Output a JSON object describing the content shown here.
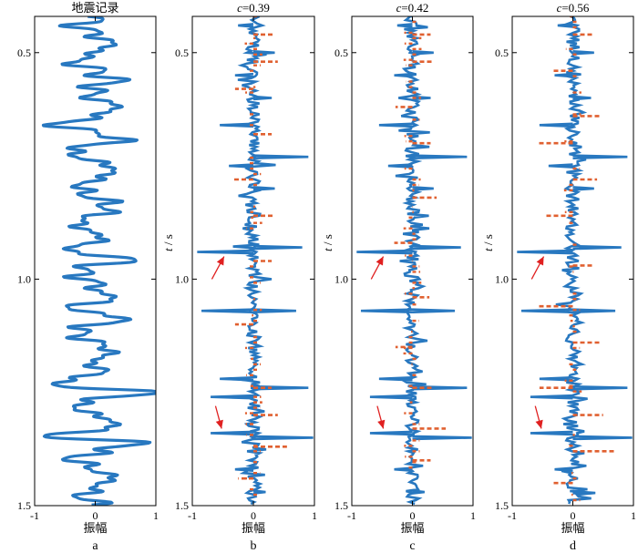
{
  "chart_data": [
    {
      "type": "line",
      "panel_letter": "a",
      "title": "地震记录",
      "xlabel": "振幅",
      "ylabel": "",
      "xlim": [
        -1,
        1
      ],
      "ylim": [
        0.42,
        1.5
      ],
      "y_inverted": true,
      "xticks": [
        -1,
        0,
        1
      ],
      "yticks": [
        0.5,
        1.0,
        1.5
      ],
      "series": [
        {
          "color": "#2878c0",
          "style": "wiggle-trace",
          "spikes": [
            {
              "t": 0.44,
              "a": -0.26
            },
            {
              "t": 0.48,
              "a": 0.28
            },
            {
              "t": 0.52,
              "a": -0.35
            },
            {
              "t": 0.56,
              "a": 0.3
            },
            {
              "t": 0.62,
              "a": 0.4
            },
            {
              "t": 0.66,
              "a": -0.62
            },
            {
              "t": 0.69,
              "a": 0.32
            },
            {
              "t": 0.72,
              "a": -0.45
            },
            {
              "t": 0.76,
              "a": 0.35
            },
            {
              "t": 0.8,
              "a": -0.3
            },
            {
              "t": 0.84,
              "a": 0.28
            },
            {
              "t": 0.88,
              "a": -0.35
            },
            {
              "t": 0.94,
              "a": -0.82
            },
            {
              "t": 0.95,
              "a": 0.8
            },
            {
              "t": 0.99,
              "a": -0.3
            },
            {
              "t": 1.04,
              "a": 0.25
            },
            {
              "t": 1.07,
              "a": -0.68
            },
            {
              "t": 1.08,
              "a": 0.72
            },
            {
              "t": 1.12,
              "a": -0.32
            },
            {
              "t": 1.16,
              "a": 0.3
            },
            {
              "t": 1.23,
              "a": -0.72
            },
            {
              "t": 1.25,
              "a": 0.78
            },
            {
              "t": 1.28,
              "a": -0.3
            },
            {
              "t": 1.32,
              "a": 0.35
            },
            {
              "t": 1.35,
              "a": -0.92
            },
            {
              "t": 1.36,
              "a": 0.98
            },
            {
              "t": 1.4,
              "a": -0.35
            },
            {
              "t": 1.44,
              "a": 0.3
            },
            {
              "t": 1.48,
              "a": -0.2
            }
          ]
        }
      ]
    },
    {
      "type": "line",
      "panel_letter": "b",
      "title_symbol": "c",
      "title_value": "=0.39",
      "xlabel": "振幅",
      "ylabel_symbol": "t",
      "ylabel_unit": " / s",
      "xlim": [
        -1,
        1
      ],
      "ylim": [
        0.42,
        1.5
      ],
      "y_inverted": true,
      "xticks": [
        -1,
        0,
        1
      ],
      "yticks": [
        0.5,
        1.0,
        1.5
      ],
      "series": [
        {
          "color": "#2878c0",
          "style": "spike-trace",
          "spikes": [
            {
              "t": 0.44,
              "a": -0.25
            },
            {
              "t": 0.5,
              "a": 0.35
            },
            {
              "t": 0.55,
              "a": -0.3
            },
            {
              "t": 0.6,
              "a": 0.3
            },
            {
              "t": 0.66,
              "a": -0.55
            },
            {
              "t": 0.73,
              "a": 0.9
            },
            {
              "t": 0.75,
              "a": -0.4
            },
            {
              "t": 0.8,
              "a": 0.35
            },
            {
              "t": 0.94,
              "a": -0.92
            },
            {
              "t": 0.93,
              "a": 0.8
            },
            {
              "t": 1.07,
              "a": -0.85
            },
            {
              "t": 1.07,
              "a": 0.7
            },
            {
              "t": 1.22,
              "a": -0.55
            },
            {
              "t": 1.24,
              "a": 0.9
            },
            {
              "t": 1.26,
              "a": -0.7
            },
            {
              "t": 1.34,
              "a": -0.7
            },
            {
              "t": 1.35,
              "a": 0.98
            },
            {
              "t": 1.42,
              "a": -0.3
            },
            {
              "t": 1.47,
              "a": 0.2
            }
          ]
        },
        {
          "color": "#e06030",
          "style": "spike-trace",
          "spikes": [
            {
              "t": 0.46,
              "a": 0.32
            },
            {
              "t": 0.52,
              "a": 0.4
            },
            {
              "t": 0.58,
              "a": -0.3
            },
            {
              "t": 0.68,
              "a": 0.3
            },
            {
              "t": 0.78,
              "a": -0.35
            },
            {
              "t": 0.86,
              "a": 0.35
            },
            {
              "t": 0.96,
              "a": 0.3
            },
            {
              "t": 1.1,
              "a": -0.3
            },
            {
              "t": 1.24,
              "a": 0.3
            },
            {
              "t": 1.3,
              "a": 0.4
            },
            {
              "t": 1.37,
              "a": 0.55
            },
            {
              "t": 1.44,
              "a": -0.25
            }
          ]
        }
      ],
      "annotations": [
        {
          "type": "arrow",
          "color": "#e02020",
          "from": [
            -0.68,
            1.0
          ],
          "to": [
            -0.48,
            0.95
          ]
        },
        {
          "type": "arrow",
          "color": "#e02020",
          "from": [
            -0.62,
            1.28
          ],
          "to": [
            -0.52,
            1.33
          ]
        }
      ]
    },
    {
      "type": "line",
      "panel_letter": "c",
      "title_symbol": "c",
      "title_value": "=0.42",
      "xlabel": "振幅",
      "ylabel_symbol": "t",
      "ylabel_unit": " / s",
      "xlim": [
        -1,
        1
      ],
      "ylim": [
        0.42,
        1.5
      ],
      "y_inverted": true,
      "xticks": [
        -1,
        0,
        1
      ],
      "yticks": [
        0.5,
        1.0,
        1.5
      ],
      "series": [
        {
          "color": "#2878c0",
          "style": "spike-trace",
          "spikes": [
            {
              "t": 0.44,
              "a": -0.25
            },
            {
              "t": 0.5,
              "a": 0.35
            },
            {
              "t": 0.55,
              "a": -0.3
            },
            {
              "t": 0.6,
              "a": 0.3
            },
            {
              "t": 0.66,
              "a": -0.55
            },
            {
              "t": 0.73,
              "a": 0.9
            },
            {
              "t": 0.75,
              "a": -0.4
            },
            {
              "t": 0.8,
              "a": 0.35
            },
            {
              "t": 0.94,
              "a": -0.92
            },
            {
              "t": 0.93,
              "a": 0.8
            },
            {
              "t": 1.07,
              "a": -0.85
            },
            {
              "t": 1.07,
              "a": 0.7
            },
            {
              "t": 1.22,
              "a": -0.55
            },
            {
              "t": 1.24,
              "a": 0.9
            },
            {
              "t": 1.26,
              "a": -0.7
            },
            {
              "t": 1.34,
              "a": -0.7
            },
            {
              "t": 1.35,
              "a": 0.98
            },
            {
              "t": 1.42,
              "a": -0.3
            },
            {
              "t": 1.47,
              "a": 0.2
            }
          ]
        },
        {
          "color": "#e06030",
          "style": "spike-trace",
          "spikes": [
            {
              "t": 0.46,
              "a": 0.3
            },
            {
              "t": 0.52,
              "a": 0.35
            },
            {
              "t": 0.62,
              "a": -0.28
            },
            {
              "t": 0.7,
              "a": 0.3
            },
            {
              "t": 0.82,
              "a": 0.4
            },
            {
              "t": 0.92,
              "a": -0.3
            },
            {
              "t": 1.04,
              "a": 0.28
            },
            {
              "t": 1.15,
              "a": -0.28
            },
            {
              "t": 1.24,
              "a": 0.35
            },
            {
              "t": 1.33,
              "a": 0.55
            },
            {
              "t": 1.4,
              "a": 0.3
            }
          ]
        }
      ],
      "annotations": [
        {
          "type": "arrow",
          "color": "#e02020",
          "from": [
            -0.68,
            1.0
          ],
          "to": [
            -0.48,
            0.95
          ]
        },
        {
          "type": "arrow",
          "color": "#e02020",
          "from": [
            -0.58,
            1.28
          ],
          "to": [
            -0.48,
            1.33
          ]
        }
      ]
    },
    {
      "type": "line",
      "panel_letter": "d",
      "title_symbol": "c",
      "title_value": "=0.56",
      "xlabel": "振幅",
      "ylabel_symbol": "t",
      "ylabel_unit": " / s",
      "xlim": [
        -1,
        1
      ],
      "ylim": [
        0.42,
        1.5
      ],
      "y_inverted": true,
      "xticks": [
        -1,
        0,
        1
      ],
      "yticks": [
        0.5,
        1.0,
        1.5
      ],
      "series": [
        {
          "color": "#2878c0",
          "style": "spike-trace",
          "spikes": [
            {
              "t": 0.44,
              "a": -0.25
            },
            {
              "t": 0.5,
              "a": 0.35
            },
            {
              "t": 0.55,
              "a": -0.3
            },
            {
              "t": 0.6,
              "a": 0.3
            },
            {
              "t": 0.66,
              "a": -0.55
            },
            {
              "t": 0.73,
              "a": 0.9
            },
            {
              "t": 0.75,
              "a": -0.4
            },
            {
              "t": 0.8,
              "a": 0.35
            },
            {
              "t": 0.94,
              "a": -0.92
            },
            {
              "t": 0.93,
              "a": 0.8
            },
            {
              "t": 1.07,
              "a": -0.85
            },
            {
              "t": 1.07,
              "a": 0.7
            },
            {
              "t": 1.22,
              "a": -0.55
            },
            {
              "t": 1.24,
              "a": 0.9
            },
            {
              "t": 1.26,
              "a": -0.7
            },
            {
              "t": 1.34,
              "a": -0.7
            },
            {
              "t": 1.35,
              "a": 0.98
            },
            {
              "t": 1.42,
              "a": -0.3
            },
            {
              "t": 1.47,
              "a": 0.2
            }
          ]
        },
        {
          "color": "#e06030",
          "style": "spike-trace",
          "spikes": [
            {
              "t": 0.46,
              "a": 0.35
            },
            {
              "t": 0.54,
              "a": -0.35
            },
            {
              "t": 0.64,
              "a": 0.45
            },
            {
              "t": 0.7,
              "a": -0.6
            },
            {
              "t": 0.78,
              "a": 0.4
            },
            {
              "t": 0.86,
              "a": -0.45
            },
            {
              "t": 0.97,
              "a": 0.35
            },
            {
              "t": 1.06,
              "a": -0.6
            },
            {
              "t": 1.14,
              "a": 0.45
            },
            {
              "t": 1.24,
              "a": -0.55
            },
            {
              "t": 1.3,
              "a": 0.5
            },
            {
              "t": 1.38,
              "a": 0.7
            },
            {
              "t": 1.45,
              "a": -0.35
            }
          ]
        }
      ],
      "annotations": [
        {
          "type": "arrow",
          "color": "#e02020",
          "from": [
            -0.68,
            1.0
          ],
          "to": [
            -0.48,
            0.95
          ]
        },
        {
          "type": "arrow",
          "color": "#e02020",
          "from": [
            -0.62,
            1.28
          ],
          "to": [
            -0.52,
            1.33
          ]
        }
      ]
    }
  ]
}
